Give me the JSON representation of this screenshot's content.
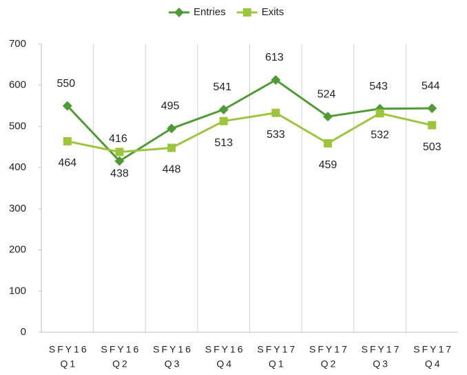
{
  "chart_data": {
    "type": "line",
    "categories": [
      [
        "SFY16",
        "Q1"
      ],
      [
        "SFY16",
        "Q2"
      ],
      [
        "SFY16",
        "Q3"
      ],
      [
        "SFY16",
        "Q4"
      ],
      [
        "SFY17",
        "Q1"
      ],
      [
        "SFY17",
        "Q2"
      ],
      [
        "SFY17",
        "Q3"
      ],
      [
        "SFY17",
        "Q4"
      ]
    ],
    "series": [
      {
        "name": "Entries",
        "color": "#4f9a34",
        "marker": "diamond",
        "values": [
          550,
          416,
          495,
          541,
          613,
          524,
          543,
          544
        ]
      },
      {
        "name": "Exits",
        "color": "#9cc53d",
        "marker": "square",
        "values": [
          464,
          438,
          448,
          513,
          533,
          459,
          532,
          503
        ]
      }
    ],
    "ylim": [
      0,
      700
    ],
    "yticks": [
      0,
      100,
      200,
      300,
      400,
      500,
      600,
      700
    ],
    "legend": "top"
  }
}
